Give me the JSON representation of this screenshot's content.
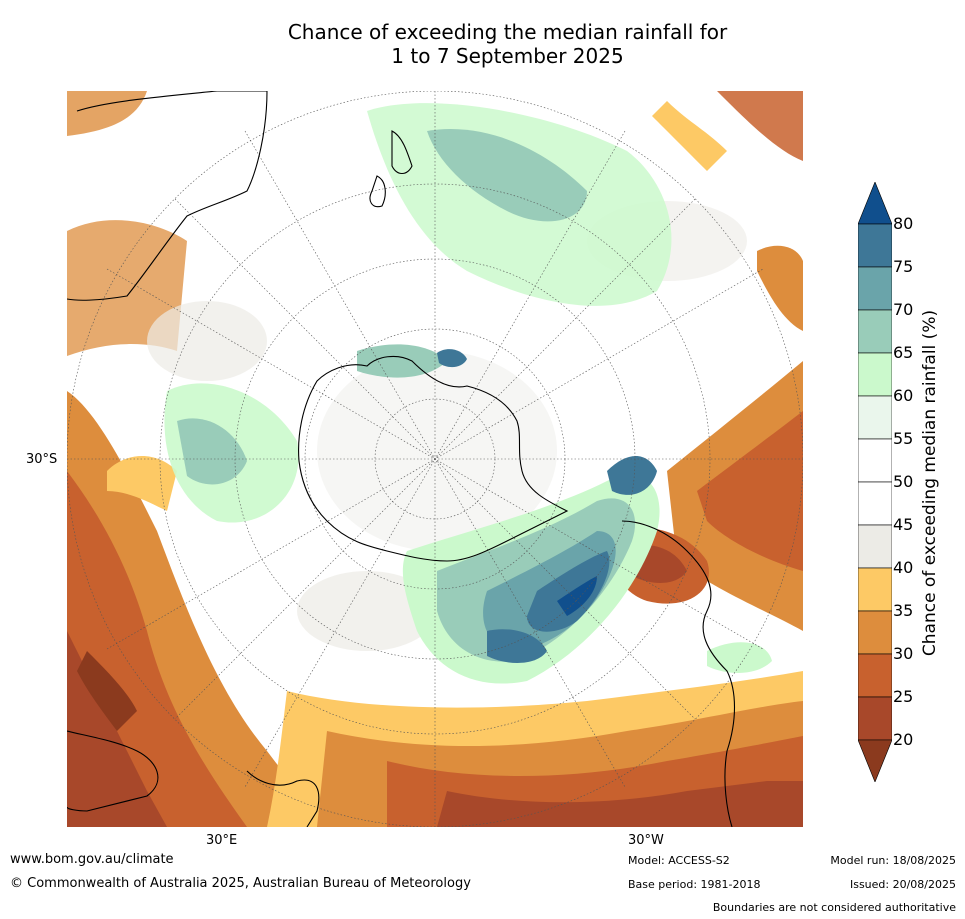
{
  "title": {
    "line1": "Chance of exceeding the median rainfall for",
    "line2": "1 to 7 September 2025"
  },
  "map": {
    "projection": "south-polar",
    "lat_label": "30°S",
    "lon_labels": [
      "30°E",
      "30°W"
    ],
    "regions": [
      {
        "name": "Antarctica"
      },
      {
        "name": "Australia"
      },
      {
        "name": "New Zealand"
      },
      {
        "name": "South America"
      },
      {
        "name": "Southern Africa"
      },
      {
        "name": "Madagascar"
      }
    ]
  },
  "colorbar": {
    "label": "Chance of exceeding median rainfall (%)",
    "ticks": [
      "80",
      "75",
      "70",
      "65",
      "60",
      "55",
      "50",
      "45",
      "40",
      "35",
      "30",
      "25",
      "20"
    ],
    "colors": {
      "below20": "#8b3a1e",
      "20-25": "#a8482a",
      "25-30": "#c8612e",
      "30-35": "#dd8d3d",
      "35-40": "#fdc965",
      "40-45": "#ecebe6",
      "45-50": "#ffffff",
      "50-55": "#ffffff",
      "55-60": "#eaf6ec",
      "60-65": "#cbf9cc",
      "65-70": "#99ccb9",
      "70-75": "#6aa4aa",
      "75-80": "#3e7797",
      "above80": "#104f8d"
    }
  },
  "footer": {
    "website": "www.bom.gov.au/climate",
    "copyright": "© Commonwealth of Australia 2025, Australian Bureau of Meteorology",
    "model": "Model: ACCESS-S2",
    "base_period": "Base period: 1981-2018",
    "model_run": "Model run: 18/08/2025",
    "issued": "Issued: 20/08/2025",
    "disclaimer": "Boundaries are not considered authoritative"
  }
}
